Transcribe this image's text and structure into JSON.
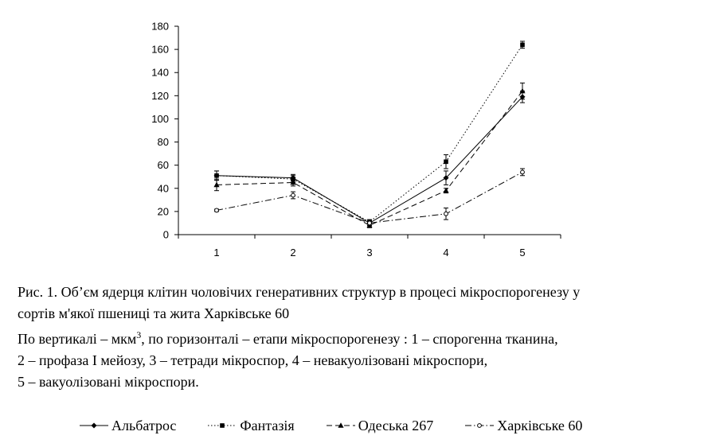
{
  "chart_data": {
    "type": "line",
    "x": [
      1,
      2,
      3,
      4,
      5
    ],
    "xticks": [
      "1",
      "2",
      "3",
      "4",
      "5"
    ],
    "ylim": [
      0,
      180
    ],
    "yticks": [
      "0",
      "20",
      "40",
      "60",
      "80",
      "100",
      "120",
      "140",
      "160",
      "180"
    ],
    "grid": false,
    "legend_position": "bottom",
    "series": [
      {
        "name": "Альбатрос",
        "values": [
          51,
          49,
          10,
          49,
          119
        ],
        "errors": [
          4,
          3,
          2,
          6,
          5
        ],
        "dash": "solid",
        "marker": "diamond",
        "color": "#000000"
      },
      {
        "name": "Фантазія",
        "values": [
          51,
          48,
          11,
          63,
          164
        ],
        "errors": [
          4,
          3,
          2,
          6,
          3
        ],
        "dash": "dotted",
        "marker": "square",
        "color": "#000000"
      },
      {
        "name": "Одеська 267",
        "values": [
          43,
          45,
          8,
          38,
          124
        ],
        "errors": [
          5,
          3,
          2,
          2,
          7
        ],
        "dash": "dashed",
        "marker": "triangle",
        "color": "#000000"
      },
      {
        "name": "Харківське 60",
        "values": [
          21,
          34,
          10,
          18,
          54
        ],
        "errors": [
          1,
          3,
          2,
          5,
          3
        ],
        "dash": "dashdot",
        "marker": "circle",
        "color": "#000000"
      }
    ]
  },
  "caption": {
    "line1": "Рис. 1. Об’єм ядерця клітин чоловічих генеративних структур в процесі мікроспорогенезу у",
    "line2": "сортів м'якої пшениці та жита Харківське 60",
    "line3_before": " По вертикалі – мкм",
    "line3_sup": "3",
    "line3_after": ", по горизонталі – етапи мікроспорогенезу : 1 – спорогенна тканина,",
    "line4": "2  – профаза I мейозу, 3 – тетради мікроспор, 4 – невакуолізовані мікроспори,",
    "line5": "5 – вакуолізовані мікроспори."
  }
}
